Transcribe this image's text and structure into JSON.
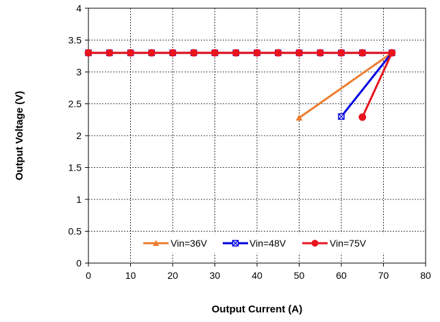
{
  "chart_data": {
    "type": "line",
    "title": "",
    "xlabel": "Output Current (A)",
    "ylabel": "Output Voltage (V)",
    "xlim": [
      0,
      80
    ],
    "ylim": [
      0,
      4
    ],
    "xticks": [
      0,
      10,
      20,
      30,
      40,
      50,
      60,
      70,
      80
    ],
    "yticks": [
      0,
      0.5,
      1,
      1.5,
      2,
      2.5,
      3,
      3.5,
      4
    ],
    "xtick_labels": [
      "0",
      "10",
      "20",
      "30",
      "40",
      "50",
      "60",
      "70",
      "80"
    ],
    "ytick_labels": [
      "0",
      "0.5",
      "1",
      "1.5",
      "2",
      "2.5",
      "3",
      "3.5",
      "4"
    ],
    "grid": true,
    "legend_position": "bottom-center",
    "series": [
      {
        "name": "Vin=36V",
        "color": "#ED7D31",
        "marker": "triangle",
        "x": [
          0,
          5,
          10,
          15,
          20,
          25,
          30,
          35,
          40,
          45,
          50,
          55,
          60,
          65,
          72,
          50
        ],
        "y": [
          3.3,
          3.3,
          3.3,
          3.3,
          3.3,
          3.3,
          3.3,
          3.3,
          3.3,
          3.3,
          3.3,
          3.3,
          3.3,
          3.3,
          3.3,
          2.28
        ]
      },
      {
        "name": "Vin=48V",
        "color": "#0000E0",
        "marker": "x-square",
        "x": [
          0,
          5,
          10,
          15,
          20,
          25,
          30,
          35,
          40,
          45,
          50,
          55,
          60,
          65,
          72,
          60
        ],
        "y": [
          3.3,
          3.3,
          3.3,
          3.3,
          3.3,
          3.3,
          3.3,
          3.3,
          3.3,
          3.3,
          3.3,
          3.3,
          3.3,
          3.3,
          3.3,
          2.3
        ]
      },
      {
        "name": "Vin=75V",
        "color": "#E8141E",
        "marker": "circle",
        "x": [
          0,
          5,
          10,
          15,
          20,
          25,
          30,
          35,
          40,
          45,
          50,
          55,
          60,
          65,
          72,
          65
        ],
        "y": [
          3.3,
          3.3,
          3.3,
          3.3,
          3.3,
          3.3,
          3.3,
          3.3,
          3.3,
          3.3,
          3.3,
          3.3,
          3.3,
          3.3,
          3.3,
          2.29
        ]
      }
    ]
  }
}
